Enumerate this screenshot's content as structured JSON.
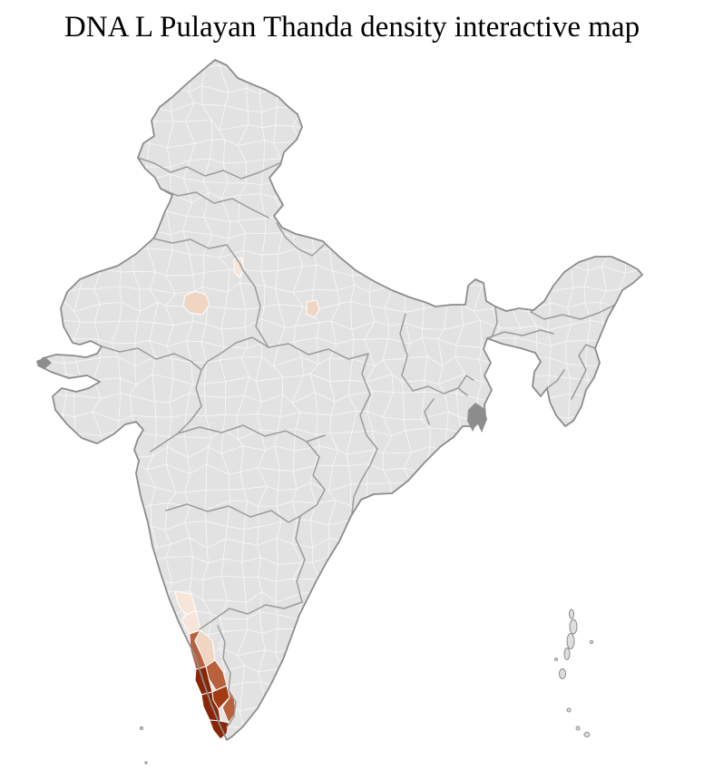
{
  "title": "DNA L Pulayan Thanda density interactive map",
  "map": {
    "colors": {
      "background": "#ffffff",
      "land": "#e2e2e2",
      "district_border": "#fbfbfb",
      "state_border": "#9b9b9b",
      "outline": "#8c8c8c",
      "island_fill": "#dedede",
      "delta": "#8d8d8d"
    },
    "density_scale": [
      {
        "level": "very-low",
        "color": "#f7e5da"
      },
      {
        "level": "low",
        "color": "#f0d5c3"
      },
      {
        "level": "medium",
        "color": "#b9603d"
      },
      {
        "level": "high",
        "color": "#a03b14"
      },
      {
        "level": "very-high",
        "color": "#8a2606"
      }
    ],
    "highlighted_regions": [
      {
        "id": "southwest-coast-1",
        "level": "very-low"
      },
      {
        "id": "southwest-coast-2",
        "level": "very-low"
      },
      {
        "id": "southwest-coast-3",
        "level": "low"
      },
      {
        "id": "southwest-coast-4",
        "level": "medium"
      },
      {
        "id": "southwest-coast-5",
        "level": "medium"
      },
      {
        "id": "southwest-coast-6",
        "level": "very-high"
      },
      {
        "id": "southwest-coast-7",
        "level": "high"
      },
      {
        "id": "southwest-coast-8",
        "level": "very-high"
      },
      {
        "id": "southwest-coast-9",
        "level": "medium"
      },
      {
        "id": "southwest-coast-10",
        "level": "very-high"
      },
      {
        "id": "north-district-1",
        "level": "low"
      },
      {
        "id": "north-district-2",
        "level": "very-low"
      },
      {
        "id": "north-district-3",
        "level": "low"
      }
    ]
  }
}
